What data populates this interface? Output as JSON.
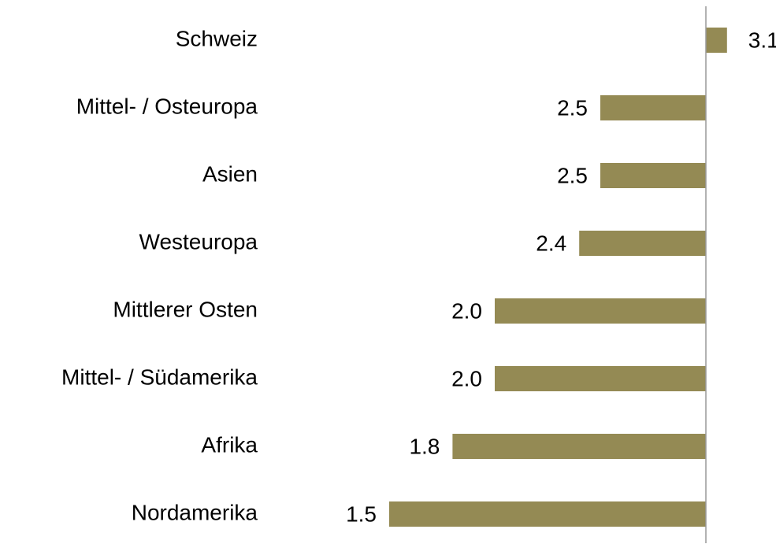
{
  "chart_data": {
    "type": "hbar",
    "categories": [
      "Schweiz",
      "Mittel- / Osteuropa",
      "Asien",
      "Westeuropa",
      "Mittlerer Osten",
      "Mittel- / Südamerika",
      "Afrika",
      "Nordamerika"
    ],
    "values": [
      3.1,
      2.5,
      2.5,
      2.4,
      2.0,
      2.0,
      1.8,
      1.5
    ],
    "value_labels": [
      "3.1",
      "2.5",
      "2.5",
      "2.4",
      "2.0",
      "2.0",
      "1.8",
      "1.5"
    ],
    "color": "#948a54",
    "xlim": [
      1.4,
      3.3
    ],
    "baseline": 3
  }
}
